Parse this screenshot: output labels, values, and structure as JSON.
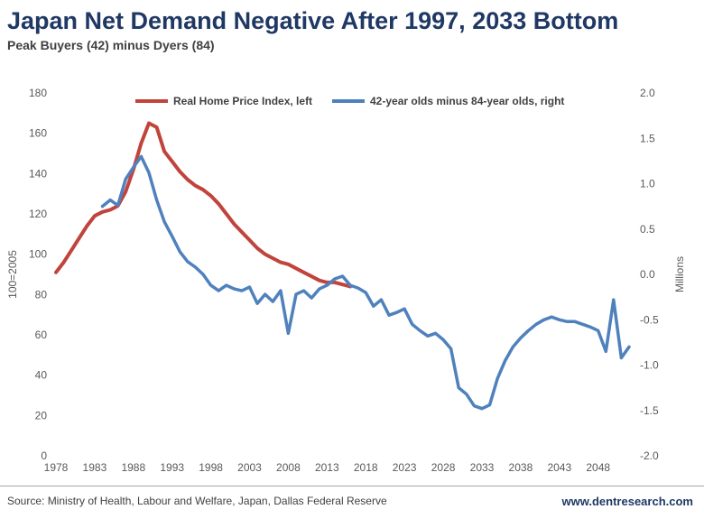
{
  "header": {
    "title": "Japan Net Demand Negative After 1997, 2033 Bottom",
    "subtitle": "Peak Buyers (42) minus Dyers (84)"
  },
  "footer": {
    "source": "Source: Ministry of Health, Labour and Welfare, Japan, Dallas Federal Reserve",
    "website": "www.dentresearch.com"
  },
  "colors": {
    "title": "#1F3864",
    "subtitle": "#404040",
    "axis_text": "#595959",
    "footer_text": "#404040",
    "website": "#1F3864",
    "divider": "#A6A6A6"
  },
  "chart_data": {
    "type": "line",
    "title": "",
    "grid": false,
    "legend_position": "top-center",
    "x_range": [
      1978,
      2052
    ],
    "x_ticks": [
      1978,
      1983,
      1988,
      1993,
      1998,
      2003,
      2008,
      2013,
      2018,
      2023,
      2028,
      2033,
      2038,
      2043,
      2048
    ],
    "left_axis": {
      "label": "100=2005",
      "min": 0,
      "max": 180,
      "tick_step": 20
    },
    "right_axis": {
      "label": "Millions",
      "min": -2.0,
      "max": 2.0,
      "tick_step": 0.5
    },
    "series": [
      {
        "name": "Real Home Price Index, left",
        "axis": "left",
        "color": "#C0443C",
        "stroke_width": 4,
        "x_start": 1978,
        "x_step": 1,
        "values": [
          91,
          96,
          102,
          108,
          114,
          119,
          121,
          122,
          124,
          131,
          142,
          155,
          165,
          163,
          151,
          146,
          141,
          137,
          134,
          132,
          129,
          125,
          120,
          115,
          111,
          107,
          103,
          100,
          98,
          96,
          95,
          93,
          91,
          89,
          87,
          86,
          86,
          85,
          84
        ]
      },
      {
        "name": "42-year olds minus 84-year olds, right",
        "axis": "right",
        "color": "#4F81BD",
        "stroke_width": 3.5,
        "x_start": 1984,
        "x_step": 1,
        "values": [
          0.75,
          0.82,
          0.76,
          1.05,
          1.18,
          1.3,
          1.12,
          0.82,
          0.58,
          0.42,
          0.25,
          0.14,
          0.08,
          0.0,
          -0.12,
          -0.18,
          -0.12,
          -0.16,
          -0.18,
          -0.14,
          -0.32,
          -0.22,
          -0.3,
          -0.18,
          -0.65,
          -0.22,
          -0.18,
          -0.26,
          -0.16,
          -0.12,
          -0.05,
          -0.02,
          -0.12,
          -0.15,
          -0.2,
          -0.35,
          -0.28,
          -0.45,
          -0.42,
          -0.38,
          -0.55,
          -0.62,
          -0.68,
          -0.65,
          -0.72,
          -0.82,
          -1.25,
          -1.32,
          -1.45,
          -1.48,
          -1.44,
          -1.15,
          -0.95,
          -0.8,
          -0.7,
          -0.62,
          -0.55,
          -0.5,
          -0.47,
          -0.5,
          -0.52,
          -0.52,
          -0.55,
          -0.58,
          -0.62,
          -0.85,
          -0.28,
          -0.92,
          -0.8
        ]
      }
    ]
  }
}
